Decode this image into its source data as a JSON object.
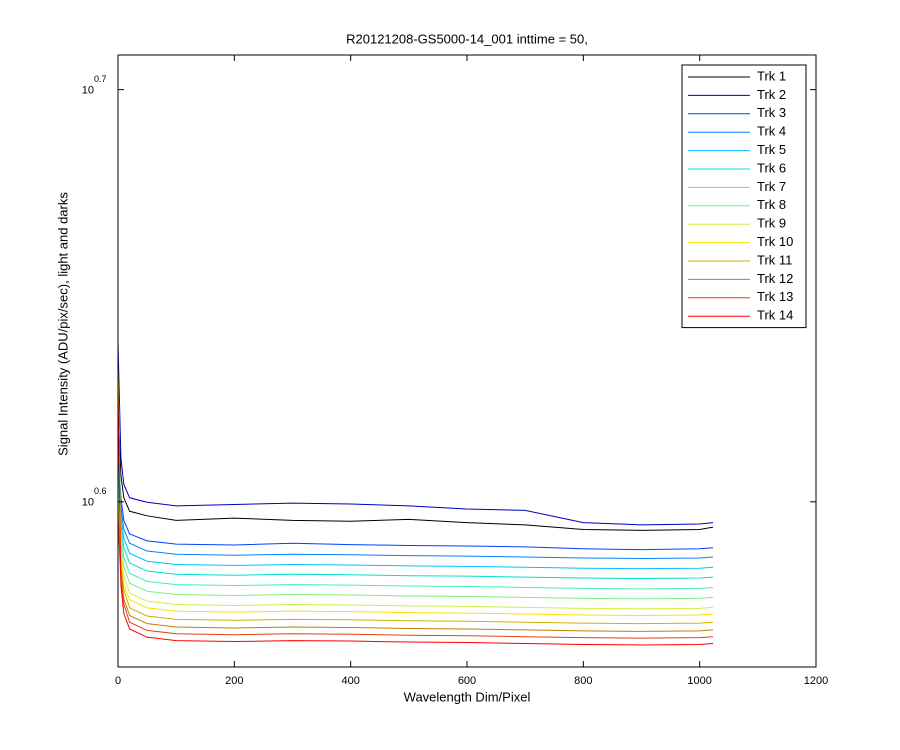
{
  "chart_data": {
    "type": "line",
    "title": "R20121208-GS5000-14_001 inttime = 50,",
    "xlabel": "Wavelength Dim/Pixel",
    "ylabel": "Signal Intensity (ADU/pix/sec), light and darks",
    "yscale": "log",
    "xlim": [
      0,
      1200
    ],
    "xticks": [
      0,
      200,
      400,
      600,
      800,
      1000,
      1200
    ],
    "ylim": [
      3.63,
      5.11
    ],
    "yticks": [
      {
        "value": 3.981,
        "label": "10",
        "exponent": "0.6"
      },
      {
        "value": 5.012,
        "label": "10",
        "exponent": "0.7"
      }
    ],
    "legend": "top-right",
    "x": [
      0,
      5,
      10,
      20,
      50,
      100,
      200,
      300,
      400,
      500,
      600,
      700,
      800,
      900,
      1000,
      1023
    ],
    "series": [
      {
        "name": "Trk 1",
        "color": "#000000",
        "values": [
          4.2,
          4.04,
          3.99,
          3.96,
          3.95,
          3.94,
          3.945,
          3.94,
          3.938,
          3.942,
          3.935,
          3.93,
          3.92,
          3.918,
          3.92,
          3.925
        ]
      },
      {
        "name": "Trk 2",
        "color": "#0000bf",
        "values": [
          4.35,
          4.08,
          4.02,
          3.99,
          3.98,
          3.972,
          3.975,
          3.978,
          3.976,
          3.972,
          3.965,
          3.962,
          3.935,
          3.93,
          3.932,
          3.935
        ]
      },
      {
        "name": "Trk 3",
        "color": "#0040ff",
        "values": [
          4.1,
          3.99,
          3.94,
          3.91,
          3.895,
          3.888,
          3.886,
          3.89,
          3.887,
          3.885,
          3.884,
          3.882,
          3.878,
          3.876,
          3.878,
          3.88
        ]
      },
      {
        "name": "Trk 4",
        "color": "#0080ff",
        "values": [
          4.08,
          3.97,
          3.92,
          3.89,
          3.873,
          3.866,
          3.864,
          3.866,
          3.865,
          3.863,
          3.862,
          3.86,
          3.858,
          3.857,
          3.858,
          3.86
        ]
      },
      {
        "name": "Trk 5",
        "color": "#00bfff",
        "values": [
          4.06,
          3.95,
          3.9,
          3.868,
          3.851,
          3.844,
          3.842,
          3.844,
          3.843,
          3.841,
          3.84,
          3.838,
          3.836,
          3.835,
          3.836,
          3.838
        ]
      },
      {
        "name": "Trk 6",
        "color": "#00e0d0",
        "values": [
          4.04,
          3.93,
          3.88,
          3.847,
          3.83,
          3.823,
          3.821,
          3.823,
          3.822,
          3.82,
          3.819,
          3.817,
          3.815,
          3.814,
          3.815,
          3.817
        ]
      },
      {
        "name": "Trk 7",
        "color": "#40f0b0",
        "values": [
          4.02,
          3.91,
          3.86,
          3.825,
          3.808,
          3.801,
          3.799,
          3.801,
          3.8,
          3.798,
          3.797,
          3.795,
          3.793,
          3.792,
          3.793,
          3.795
        ]
      },
      {
        "name": "Trk 8",
        "color": "#80f080",
        "values": [
          4.0,
          3.89,
          3.84,
          3.804,
          3.787,
          3.78,
          3.778,
          3.78,
          3.779,
          3.777,
          3.776,
          3.774,
          3.772,
          3.771,
          3.772,
          3.774
        ]
      },
      {
        "name": "Trk 9",
        "color": "#d0f040",
        "values": [
          3.98,
          3.87,
          3.82,
          3.783,
          3.766,
          3.759,
          3.757,
          3.759,
          3.758,
          3.756,
          3.755,
          3.753,
          3.751,
          3.75,
          3.751,
          3.753
        ]
      },
      {
        "name": "Trk 10",
        "color": "#ffe000",
        "values": [
          4.3,
          3.86,
          3.8,
          3.769,
          3.752,
          3.745,
          3.743,
          3.745,
          3.744,
          3.742,
          3.741,
          3.739,
          3.737,
          3.736,
          3.737,
          3.739
        ]
      },
      {
        "name": "Trk 11",
        "color": "#d0b000",
        "values": [
          3.96,
          3.84,
          3.79,
          3.752,
          3.735,
          3.728,
          3.726,
          3.728,
          3.727,
          3.725,
          3.724,
          3.722,
          3.72,
          3.719,
          3.72,
          3.722
        ]
      },
      {
        "name": "Trk 12",
        "color": "#c08000",
        "values": [
          3.95,
          3.83,
          3.77,
          3.736,
          3.719,
          3.712,
          3.71,
          3.712,
          3.711,
          3.709,
          3.708,
          3.706,
          3.704,
          3.703,
          3.704,
          3.706
        ]
      },
      {
        "name": "Trk 13",
        "color": "#e04010",
        "values": [
          3.94,
          3.81,
          3.76,
          3.722,
          3.705,
          3.698,
          3.696,
          3.698,
          3.697,
          3.695,
          3.694,
          3.692,
          3.69,
          3.689,
          3.69,
          3.692
        ]
      },
      {
        "name": "Trk 14",
        "color": "#ff0000",
        "values": [
          4.25,
          3.8,
          3.74,
          3.708,
          3.691,
          3.684,
          3.682,
          3.684,
          3.683,
          3.681,
          3.68,
          3.678,
          3.676,
          3.675,
          3.676,
          3.678
        ]
      }
    ]
  }
}
